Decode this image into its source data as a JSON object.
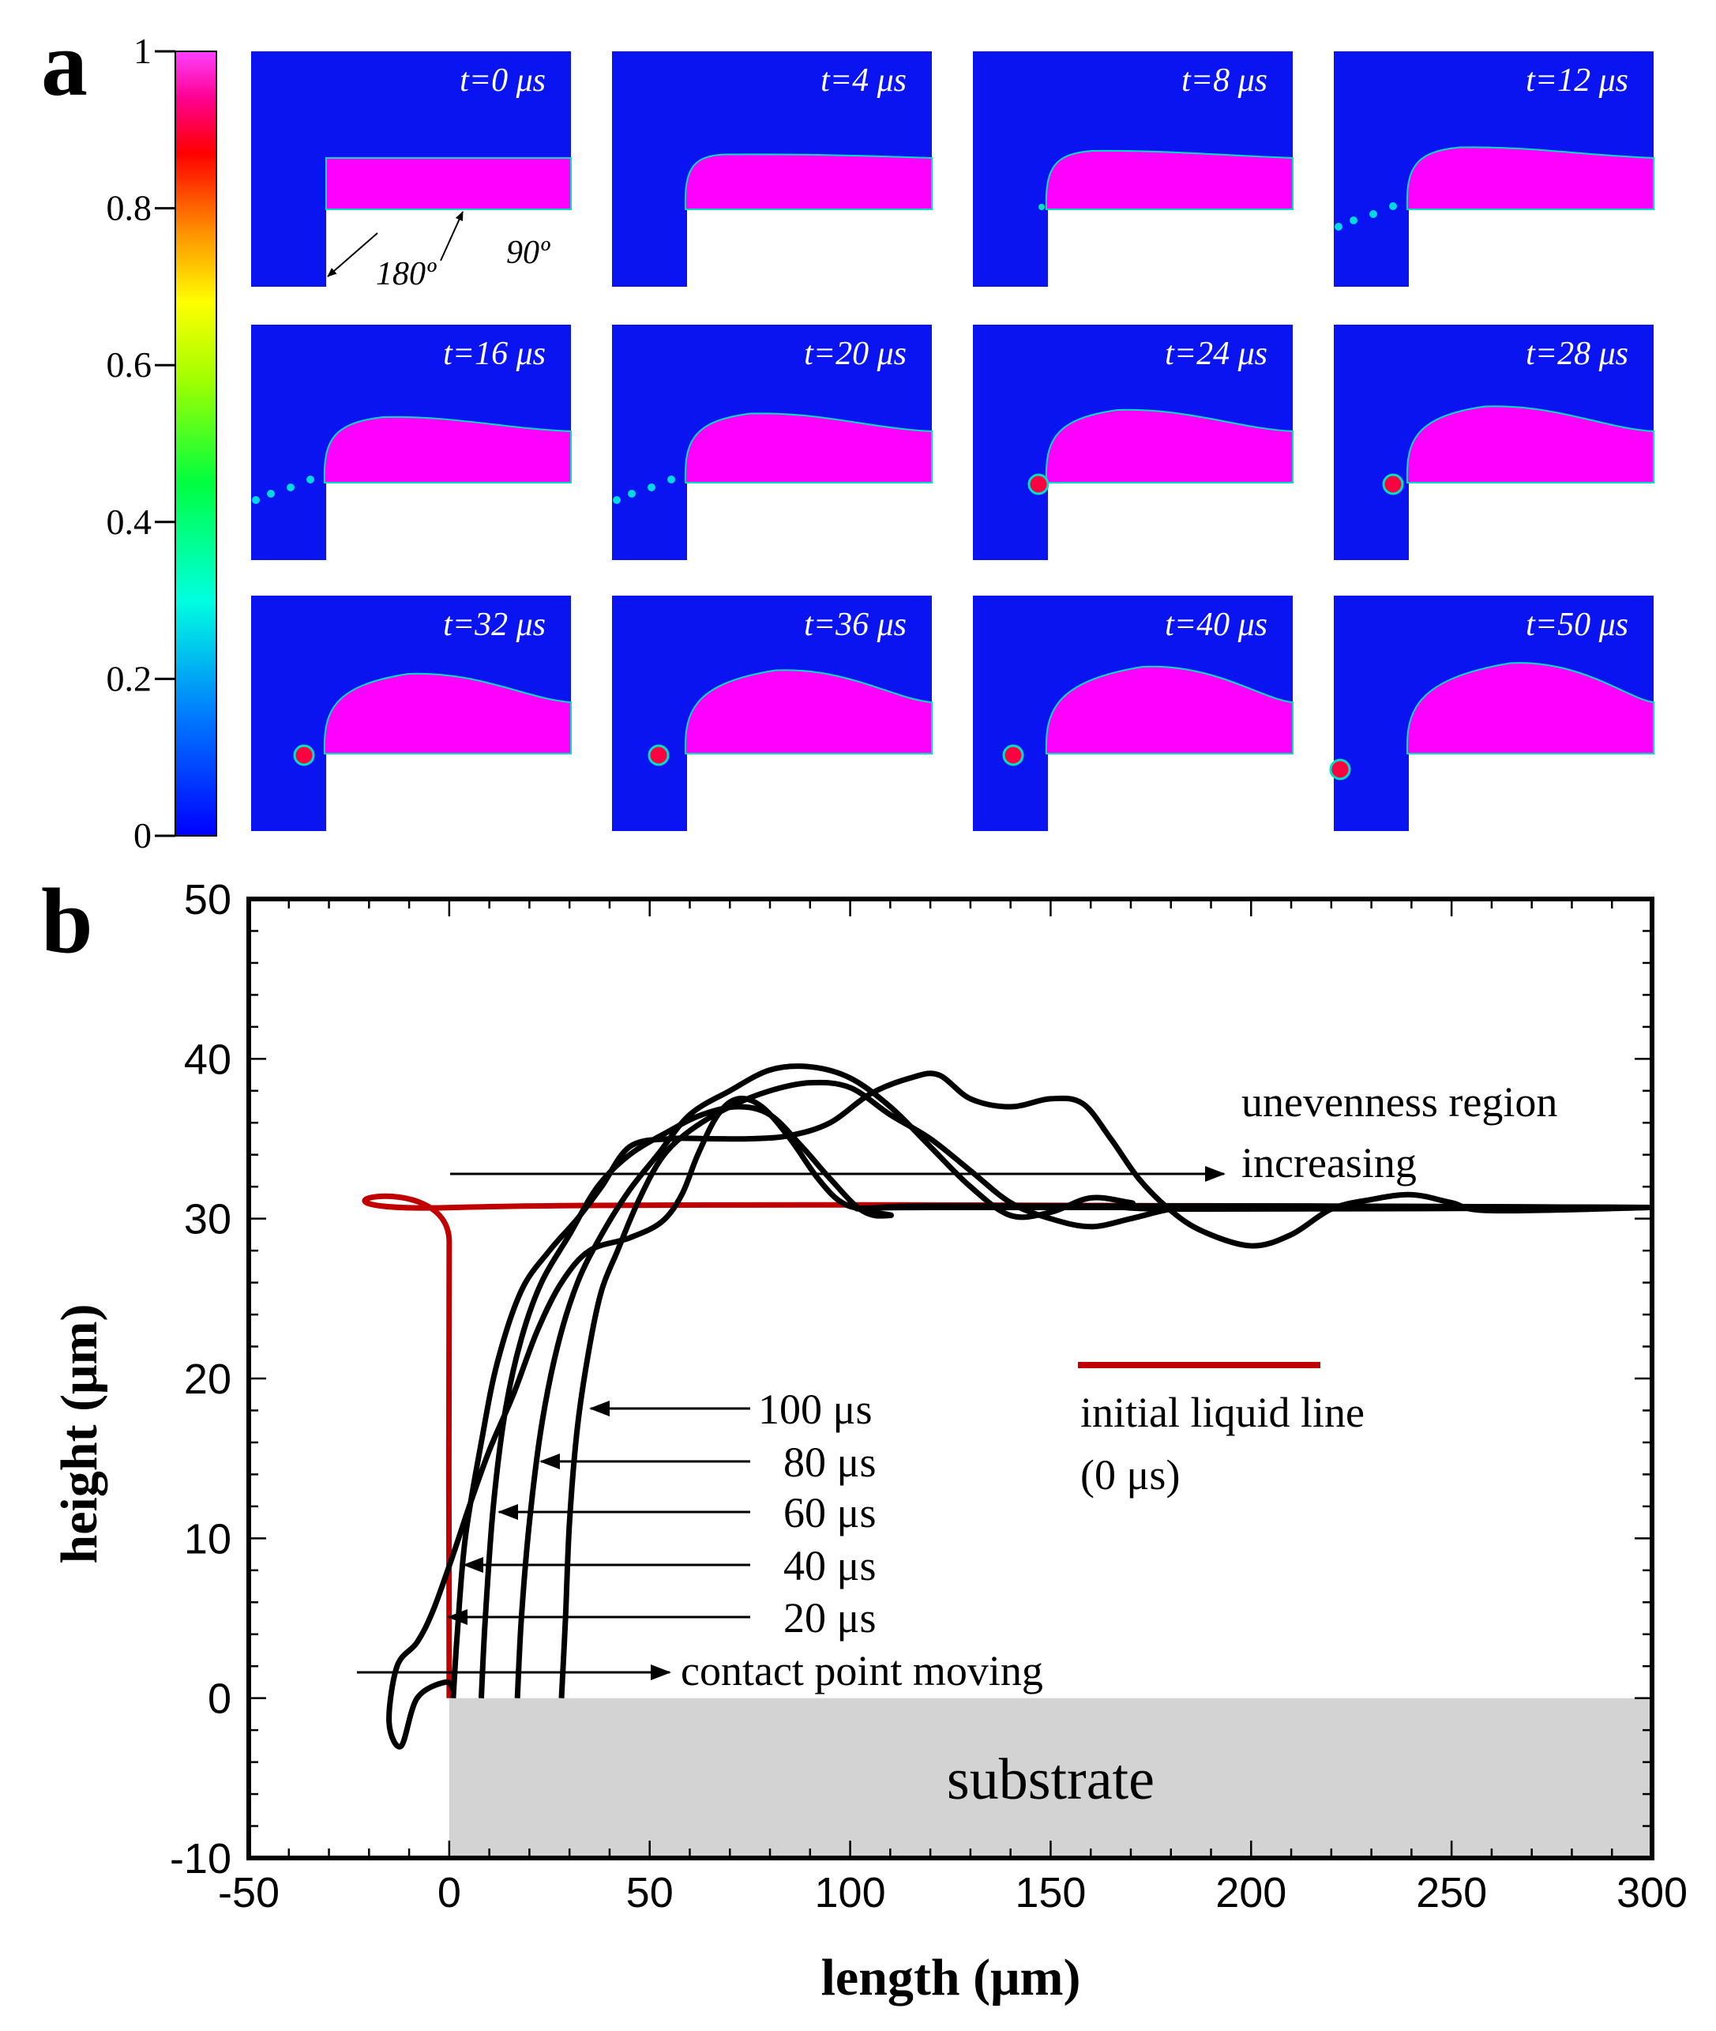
{
  "panel_a": {
    "letter": "a",
    "colorbar": {
      "ticks": [
        "1",
        "0.8",
        "0.6",
        "0.4",
        "0.2",
        "0"
      ],
      "tick_values": [
        1,
        0.8,
        0.6,
        0.4,
        0.2,
        0
      ],
      "colors": [
        "#0000ff",
        "#00a0ff",
        "#00ff80",
        "#80ff00",
        "#ffff00",
        "#ff8000",
        "#ff0000",
        "#ff00a0",
        "#ff00ff"
      ]
    },
    "background_color": "#0a14f0",
    "liquid_color": "#ff00ff",
    "frames": [
      {
        "label": "t=0 μs",
        "rise": 0,
        "droplet": ""
      },
      {
        "label": "t=4 μs",
        "rise": 1,
        "droplet": ""
      },
      {
        "label": "t=8 μs",
        "rise": 2,
        "droplet": "small"
      },
      {
        "label": "t=12 μs",
        "rise": 3,
        "droplet": "spray"
      },
      {
        "label": "t=16 μs",
        "rise": 4,
        "droplet": "spray"
      },
      {
        "label": "t=20 μs",
        "rise": 5,
        "droplet": "spray"
      },
      {
        "label": "t=24 μs",
        "rise": 6,
        "droplet": "drop"
      },
      {
        "label": "t=28 μs",
        "rise": 7,
        "droplet": "drop"
      },
      {
        "label": "t=32 μs",
        "rise": 8,
        "droplet": "drop"
      },
      {
        "label": "t=36 μs",
        "rise": 9,
        "droplet": "drop"
      },
      {
        "label": "t=40 μs",
        "rise": 10,
        "droplet": "drop"
      },
      {
        "label": "t=50 μs",
        "rise": 11,
        "droplet": "edge"
      }
    ],
    "angle_labels": {
      "first": "180º",
      "second": "90º"
    }
  },
  "panel_b": {
    "letter": "b",
    "chart_data": {
      "type": "line",
      "xlabel": "length (μm)",
      "ylabel": "height (μm)",
      "xlim": [
        -50,
        300
      ],
      "ylim": [
        -10,
        50
      ],
      "xticks": [
        -50,
        0,
        50,
        100,
        150,
        200,
        250,
        300
      ],
      "yticks": [
        -10,
        0,
        10,
        20,
        30,
        40,
        50
      ],
      "series": [
        {
          "name": "initial liquid line (0 μs)",
          "color": "#c00000",
          "points": [
            [
              0,
              0
            ],
            [
              0,
              28.5
            ],
            [
              1.5,
              30.7
            ],
            [
              300,
              30.7
            ]
          ]
        },
        {
          "name": "20 μs",
          "color": "#000000",
          "points": [
            [
              1,
              0.5
            ],
            [
              -1,
              1
            ],
            [
              -8,
              0
            ],
            [
              -12,
              -3
            ],
            [
              -15,
              -1.5
            ],
            [
              -13,
              2
            ],
            [
              -8,
              3.5
            ],
            [
              -4,
              5.5
            ],
            [
              1,
              9
            ],
            [
              5,
              12
            ],
            [
              10,
              15.5
            ],
            [
              16,
              19
            ],
            [
              22,
              23
            ],
            [
              28,
              26
            ],
            [
              35,
              28
            ],
            [
              45,
              28.8
            ],
            [
              53,
              29.8
            ],
            [
              58,
              31.5
            ],
            [
              62,
              34
            ],
            [
              67,
              36.5
            ],
            [
              72,
              37.5
            ],
            [
              78,
              37
            ],
            [
              85,
              35
            ],
            [
              92,
              32.5
            ],
            [
              98,
              31
            ],
            [
              105,
              30.6
            ],
            [
              120,
              30.7
            ],
            [
              300,
              30.7
            ]
          ]
        },
        {
          "name": "40 μs",
          "color": "#000000",
          "points": [
            [
              1,
              0
            ],
            [
              2,
              4
            ],
            [
              4,
              10
            ],
            [
              8,
              16
            ],
            [
              12,
              21
            ],
            [
              18,
              25.5
            ],
            [
              25,
              28
            ],
            [
              32,
              30
            ],
            [
              38,
              32
            ],
            [
              45,
              34.5
            ],
            [
              55,
              35
            ],
            [
              65,
              35
            ],
            [
              75,
              35
            ],
            [
              85,
              35.2
            ],
            [
              95,
              36
            ],
            [
              105,
              37.8
            ],
            [
              115,
              38.8
            ],
            [
              122,
              39
            ],
            [
              130,
              37.5
            ],
            [
              140,
              37
            ],
            [
              150,
              37.5
            ],
            [
              158,
              37.2
            ],
            [
              165,
              35
            ],
            [
              172,
              32.5
            ],
            [
              180,
              30.5
            ],
            [
              188,
              29.2
            ],
            [
              200,
              28.3
            ],
            [
              210,
              29
            ],
            [
              220,
              30.6
            ],
            [
              230,
              31.2
            ],
            [
              240,
              31.5
            ],
            [
              250,
              31
            ],
            [
              260,
              30.5
            ],
            [
              300,
              30.7
            ]
          ]
        },
        {
          "name": "60 μs",
          "color": "#000000",
          "points": [
            [
              8,
              0
            ],
            [
              9,
              5
            ],
            [
              11,
              12
            ],
            [
              14,
              18
            ],
            [
              18,
              22.5
            ],
            [
              23,
              26
            ],
            [
              30,
              29
            ],
            [
              37,
              32
            ],
            [
              45,
              34
            ],
            [
              55,
              35.5
            ],
            [
              63,
              36.5
            ],
            [
              72,
              37
            ],
            [
              80,
              36.5
            ],
            [
              88,
              34.5
            ],
            [
              95,
              32.5
            ],
            [
              103,
              30.5
            ],
            [
              110,
              30.2
            ],
            [
              120,
              30.8
            ],
            [
              300,
              30.7
            ]
          ]
        },
        {
          "name": "80 μs",
          "color": "#000000",
          "points": [
            [
              17,
              0
            ],
            [
              18,
              5
            ],
            [
              20,
              11
            ],
            [
              23,
              17
            ],
            [
              27,
              22
            ],
            [
              32,
              26
            ],
            [
              38,
              29
            ],
            [
              45,
              31.8
            ],
            [
              52,
              34
            ],
            [
              60,
              36.5
            ],
            [
              70,
              38
            ],
            [
              80,
              39.3
            ],
            [
              90,
              39.5
            ],
            [
              100,
              38.8
            ],
            [
              110,
              37
            ],
            [
              120,
              34.5
            ],
            [
              130,
              32
            ],
            [
              140,
              30.2
            ],
            [
              150,
              30.4
            ],
            [
              160,
              31.3
            ],
            [
              170,
              31
            ],
            [
              180,
              30.6
            ],
            [
              300,
              30.7
            ]
          ]
        },
        {
          "name": "100 μs",
          "color": "#000000",
          "points": [
            [
              28,
              0
            ],
            [
              29,
              5
            ],
            [
              30,
              11
            ],
            [
              32,
              17
            ],
            [
              35,
              22
            ],
            [
              38,
              25.5
            ],
            [
              42,
              28
            ],
            [
              47,
              31
            ],
            [
              53,
              33.8
            ],
            [
              60,
              35.5
            ],
            [
              70,
              37
            ],
            [
              80,
              38
            ],
            [
              90,
              38.5
            ],
            [
              100,
              38.2
            ],
            [
              110,
              36.5
            ],
            [
              120,
              35
            ],
            [
              130,
              33
            ],
            [
              140,
              31
            ],
            [
              150,
              30
            ],
            [
              160,
              29.5
            ],
            [
              170,
              30
            ],
            [
              180,
              30.6
            ],
            [
              190,
              30.8
            ],
            [
              300,
              30.7
            ]
          ]
        }
      ],
      "annotations": {
        "unevenness": [
          "unevenness region",
          "increasing"
        ],
        "contact_point": "contact point moving",
        "legend_line": [
          "initial liquid line",
          "(0 μs)"
        ],
        "time_labels": [
          "100 μs",
          "80 μs",
          "60 μs",
          "40 μs",
          "20 μs"
        ],
        "substrate": "substrate"
      },
      "substrate_color": "#d3d3d3"
    }
  }
}
